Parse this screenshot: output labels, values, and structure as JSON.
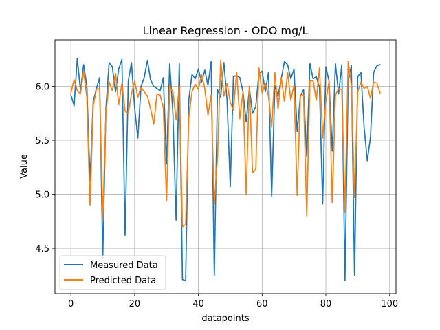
{
  "chart_data": {
    "type": "line",
    "title": "Linear Regression - ODO mg/L",
    "xlabel": "datapoints",
    "ylabel": "Value",
    "xlim": [
      -5,
      102
    ],
    "ylim": [
      4.08,
      6.43
    ],
    "xticks": [
      0,
      20,
      40,
      60,
      80,
      100
    ],
    "yticks": [
      4.5,
      5.0,
      5.5,
      6.0
    ],
    "xtick_labels": [
      "0",
      "20",
      "40",
      "60",
      "80",
      "100"
    ],
    "ytick_labels": [
      "4.5",
      "5.0",
      "5.5",
      "6.0"
    ],
    "grid": true,
    "legend_position": "lower-left",
    "series": [
      {
        "name": "Measured Data",
        "color": "#1f77b4",
        "values": [
          5.92,
          5.82,
          6.26,
          5.96,
          6.2,
          6.0,
          5.12,
          5.86,
          5.98,
          6.08,
          4.41,
          5.8,
          6.22,
          6.18,
          5.95,
          6.16,
          6.25,
          4.62,
          6.05,
          6.22,
          5.8,
          5.52,
          6.0,
          6.08,
          6.24,
          6.06,
          6.0,
          5.98,
          5.96,
          6.08,
          5.28,
          6.21,
          5.75,
          4.76,
          6.21,
          4.21,
          4.2,
          5.88,
          6.11,
          6.07,
          6.16,
          6.04,
          6.15,
          6.01,
          6.23,
          4.25,
          5.97,
          5.9,
          6.22,
          5.87,
          5.07,
          6.09,
          6.1,
          6.08,
          5.95,
          5.67,
          5.98,
          5.75,
          5.81,
          6.12,
          6.14,
          5.95,
          6.13,
          4.98,
          6.01,
          5.91,
          6.07,
          6.23,
          6.2,
          6.07,
          6.16,
          5.58,
          5.91,
          5.97,
          5.35,
          6.21,
          6.07,
          6.09,
          5.99,
          4.91,
          6.18,
          6.05,
          5.4,
          6.21,
          5.93,
          6.2,
          4.2,
          6.05,
          6.19,
          4.25,
          6.09,
          6.13,
          5.62,
          5.31,
          5.53,
          6.13,
          6.19,
          6.2
        ]
      },
      {
        "name": "Predicted Data",
        "color": "#ff7f0e",
        "values": [
          5.94,
          6.06,
          5.96,
          5.93,
          6.14,
          5.9,
          4.9,
          5.82,
          5.97,
          5.98,
          4.76,
          5.75,
          6.04,
          5.96,
          6.12,
          5.83,
          6.03,
          5.77,
          5.75,
          5.93,
          6.05,
          5.9,
          5.99,
          5.95,
          5.91,
          5.79,
          5.65,
          5.93,
          5.92,
          5.8,
          4.94,
          6.0,
          5.95,
          5.69,
          6.0,
          4.7,
          4.72,
          5.71,
          5.95,
          6.02,
          5.97,
          6.11,
          5.98,
          5.73,
          5.92,
          4.91,
          5.35,
          6.24,
          5.91,
          6.03,
          5.85,
          5.78,
          6.13,
          5.7,
          5.95,
          5.0,
          6.0,
          5.2,
          5.23,
          6.17,
          5.94,
          6.03,
          5.91,
          5.62,
          6.13,
          5.79,
          6.08,
          5.86,
          6.13,
          5.87,
          6.01,
          4.99,
          5.92,
          5.92,
          4.8,
          6.05,
          6.05,
          5.87,
          6.17,
          5.52,
          5.86,
          6.05,
          4.92,
          5.92,
          5.98,
          5.97,
          4.83,
          6.23,
          6.01,
          4.97,
          5.95,
          6.04,
          5.98,
          6.0,
          5.89,
          6.04,
          6.03,
          5.94
        ]
      }
    ]
  }
}
